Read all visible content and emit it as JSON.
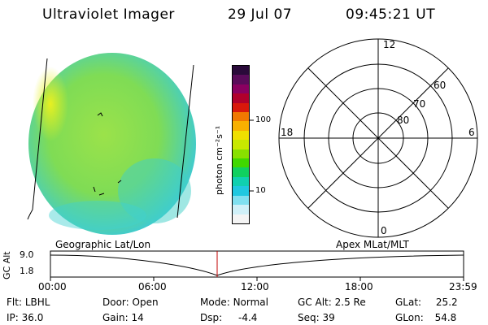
{
  "header": {
    "instrument": "Ultraviolet Imager",
    "date": "29 Jul 07",
    "time": "09:45:21 UT"
  },
  "colorbar": {
    "unit_label": "photon cm⁻²s⁻¹",
    "ticks": [
      "100",
      "10"
    ],
    "colors": [
      "#2a0a3a",
      "#5a0b5a",
      "#8a0060",
      "#b0002c",
      "#d8180b",
      "#f07800",
      "#f8b000",
      "#f0e000",
      "#c8e800",
      "#88e000",
      "#40d800",
      "#10d060",
      "#10d0b0",
      "#20c8e0",
      "#80e0f0",
      "#d0f0f8",
      "#f4f4f4"
    ]
  },
  "polar": {
    "mlt_labels": {
      "top": "12",
      "left": "18",
      "right": "6",
      "bottom": "0"
    },
    "lat_labels": [
      "60",
      "70",
      "80"
    ]
  },
  "timeline": {
    "left_title": "Geographic Lat/Lon",
    "right_title": "Apex MLat/MLT",
    "axis_label": "GC Alt",
    "y_ticks": [
      "9.0",
      "1.8"
    ],
    "x_ticks": [
      "00:00",
      "06:00",
      "12:00",
      "18:00",
      "23:59"
    ]
  },
  "info": {
    "row1": [
      {
        "label": "Flt:",
        "value": "LBHL"
      },
      {
        "label": "Door:",
        "value": "Open"
      },
      {
        "label": "Mode:",
        "value": "Normal"
      },
      {
        "label": "GC Alt:",
        "value": "2.5 Re"
      },
      {
        "label": "GLat:",
        "value": "25.2"
      }
    ],
    "row2": [
      {
        "label": "IP:",
        "value": "36.0"
      },
      {
        "label": "Gain:",
        "value": "14"
      },
      {
        "label": "Dsp:",
        "value": "-4.4"
      },
      {
        "label": "Seq:",
        "value": "39"
      },
      {
        "label": "GLon:",
        "value": "54.8"
      }
    ]
  }
}
